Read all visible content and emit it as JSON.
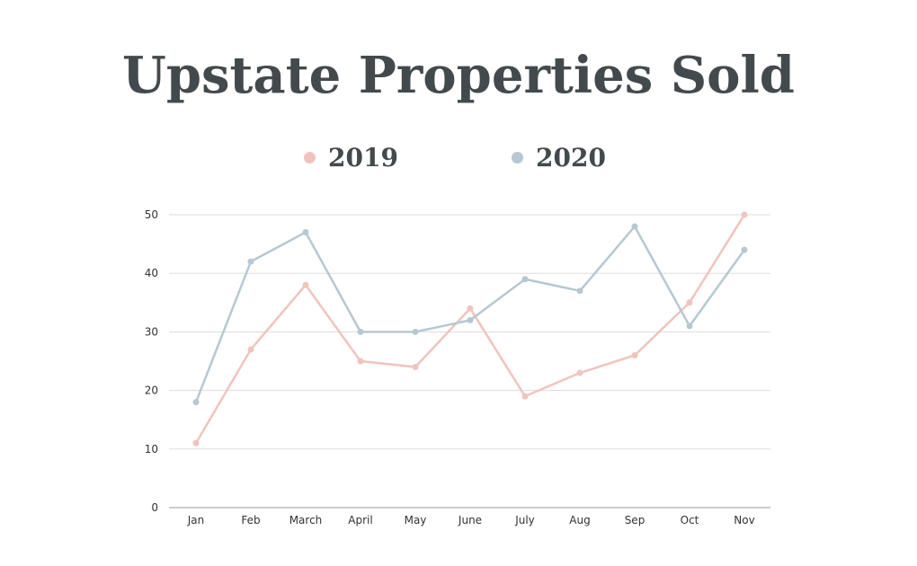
{
  "chart_data": {
    "type": "line",
    "title": "Upstate Properties Sold",
    "categories": [
      "Jan",
      "Feb",
      "March",
      "April",
      "May",
      "June",
      "July",
      "Aug",
      "Sep",
      "Oct",
      "Nov"
    ],
    "series": [
      {
        "name": "2019",
        "color": "#efc4be",
        "values": [
          11,
          27,
          38,
          25,
          24,
          34,
          19,
          23,
          26,
          35,
          50
        ]
      },
      {
        "name": "2020",
        "color": "#b7c8d2",
        "values": [
          18,
          42,
          47,
          30,
          30,
          32,
          39,
          37,
          48,
          31,
          44
        ]
      }
    ],
    "ylim": [
      0,
      50
    ],
    "yticks": [
      0,
      10,
      20,
      30,
      40,
      50
    ],
    "xlabel": "",
    "ylabel": "",
    "grid": true,
    "legend_position": "top-center",
    "colors": {
      "title": "#434a4d",
      "grid": "#dddddd",
      "axis": "#999999"
    }
  }
}
